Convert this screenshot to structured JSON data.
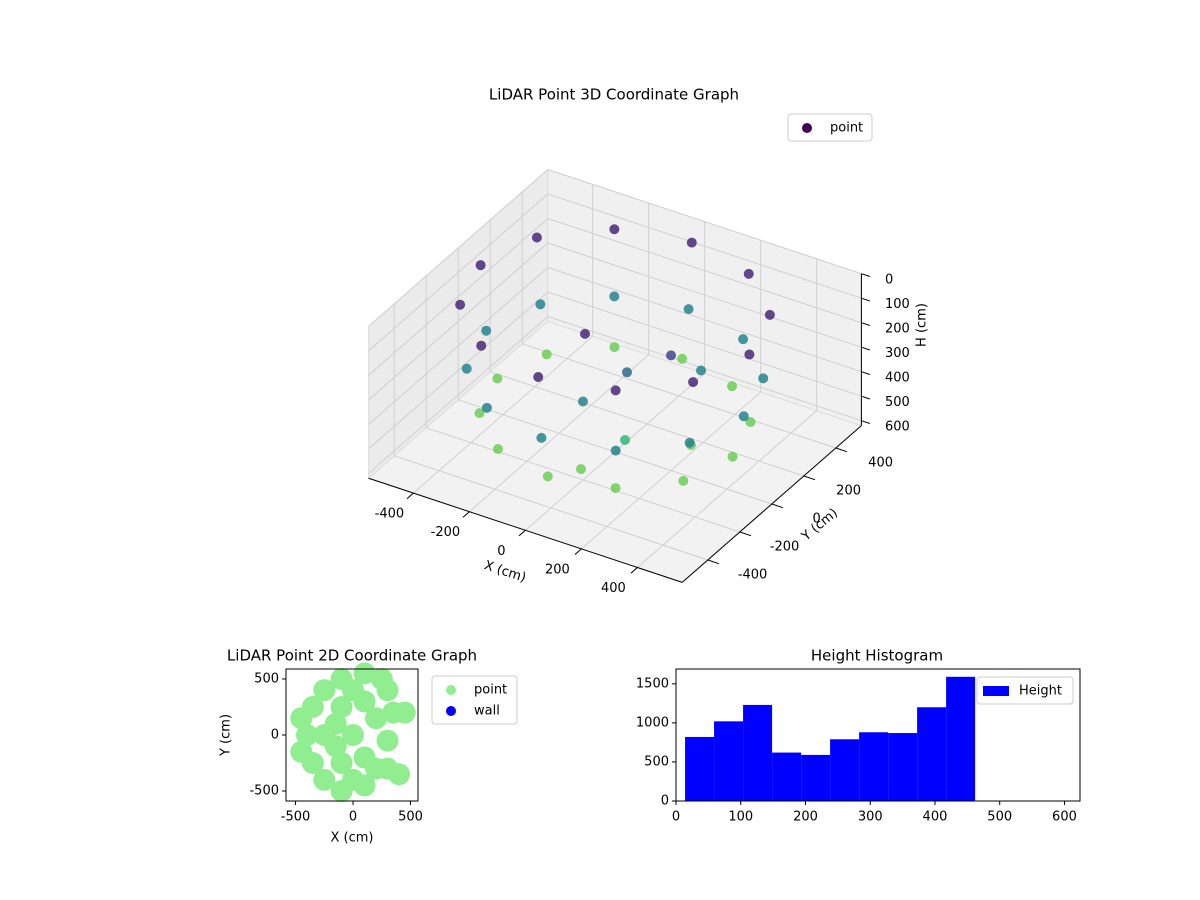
{
  "chart_data": [
    {
      "type": "scatter3d",
      "title": "LiDAR Point 3D Coordinate Graph",
      "xlabel": "X (cm)",
      "ylabel": "Y (cm)",
      "zlabel": "H (cm)",
      "xlim": [
        -560,
        560
      ],
      "ylim": [
        -560,
        560
      ],
      "zlim": [
        0,
        620
      ],
      "z_inverted": true,
      "xticks": [
        -400,
        -200,
        0,
        200,
        400
      ],
      "yticks": [
        -400,
        -200,
        0,
        200,
        400
      ],
      "zticks": [
        0,
        100,
        200,
        300,
        400,
        500,
        600
      ],
      "colormap": "viridis",
      "grid": true,
      "legend": "upper right",
      "series": [
        {
          "name": "point",
          "color": "#440154",
          "x": [
            480,
            416,
            240,
            0,
            -240,
            -416,
            -480,
            -416,
            -240,
            0,
            240,
            416,
            460,
            398,
            230,
            0,
            -230,
            -398,
            -460,
            -398,
            -230,
            0,
            230,
            398,
            420,
            364,
            210,
            0,
            -210,
            -364,
            -420,
            -364,
            -210,
            0,
            210,
            364,
            100,
            150,
            50,
            200,
            250,
            300,
            0,
            -50
          ],
          "y": [
            0,
            240,
            416,
            480,
            416,
            240,
            0,
            -240,
            -416,
            -480,
            -416,
            -240,
            0,
            230,
            398,
            460,
            398,
            230,
            0,
            -230,
            -398,
            -460,
            -398,
            -230,
            0,
            210,
            364,
            420,
            364,
            210,
            0,
            -210,
            -364,
            -420,
            -364,
            -210,
            -100,
            -200,
            -300,
            0,
            100,
            -50,
            -200,
            -100
          ],
          "z": [
            40,
            40,
            40,
            40,
            40,
            40,
            40,
            40,
            40,
            40,
            40,
            40,
            300,
            300,
            300,
            300,
            300,
            300,
            300,
            300,
            300,
            300,
            300,
            300,
            480,
            480,
            480,
            480,
            480,
            480,
            480,
            480,
            480,
            480,
            480,
            480,
            200,
            400,
            500,
            150,
            250,
            450,
            300,
            100
          ]
        }
      ]
    },
    {
      "type": "scatter",
      "title": "LiDAR Point 2D Coordinate Graph",
      "xlabel": "X (cm)",
      "ylabel": "Y (cm)",
      "xlim": [
        -583,
        565
      ],
      "ylim": [
        -589,
        589
      ],
      "xticks": [
        -500,
        0,
        500
      ],
      "yticks": [
        -500,
        0,
        500
      ],
      "legend": "outside right",
      "series": [
        {
          "name": "point",
          "color": "#90ee90",
          "x": [
            -400,
            -350,
            -350,
            -250,
            -250,
            -100,
            -100,
            100,
            100,
            -250,
            -100,
            -100,
            0,
            100,
            100,
            250,
            300,
            200,
            350,
            450,
            300,
            200,
            300,
            400,
            -450,
            -450,
            0,
            0,
            -150,
            -150
          ],
          "y": [
            0,
            250,
            -250,
            400,
            -400,
            500,
            -500,
            550,
            -450,
            0,
            250,
            -250,
            0,
            300,
            -200,
            500,
            400,
            150,
            200,
            200,
            -50,
            -300,
            -300,
            -350,
            150,
            -150,
            400,
            -400,
            100,
            -100
          ]
        },
        {
          "name": "wall",
          "color": "#0000ff",
          "x": [],
          "y": []
        }
      ]
    },
    {
      "type": "histogram",
      "title": "Height Histogram",
      "xlim": [
        0,
        624
      ],
      "ylim": [
        0,
        1690
      ],
      "xticks": [
        0,
        100,
        200,
        300,
        400,
        500,
        600
      ],
      "yticks": [
        0,
        500,
        1000,
        1500
      ],
      "legend": "upper right",
      "series": [
        {
          "name": "Height",
          "color": "#0000ff",
          "bins": [
            14,
            58.8,
            103.6,
            148.4,
            193.2,
            238,
            282.8,
            327.6,
            372.4,
            417.2,
            462
          ],
          "values": [
            820,
            1020,
            1230,
            620,
            590,
            790,
            880,
            870,
            1200,
            1590
          ]
        }
      ]
    }
  ]
}
